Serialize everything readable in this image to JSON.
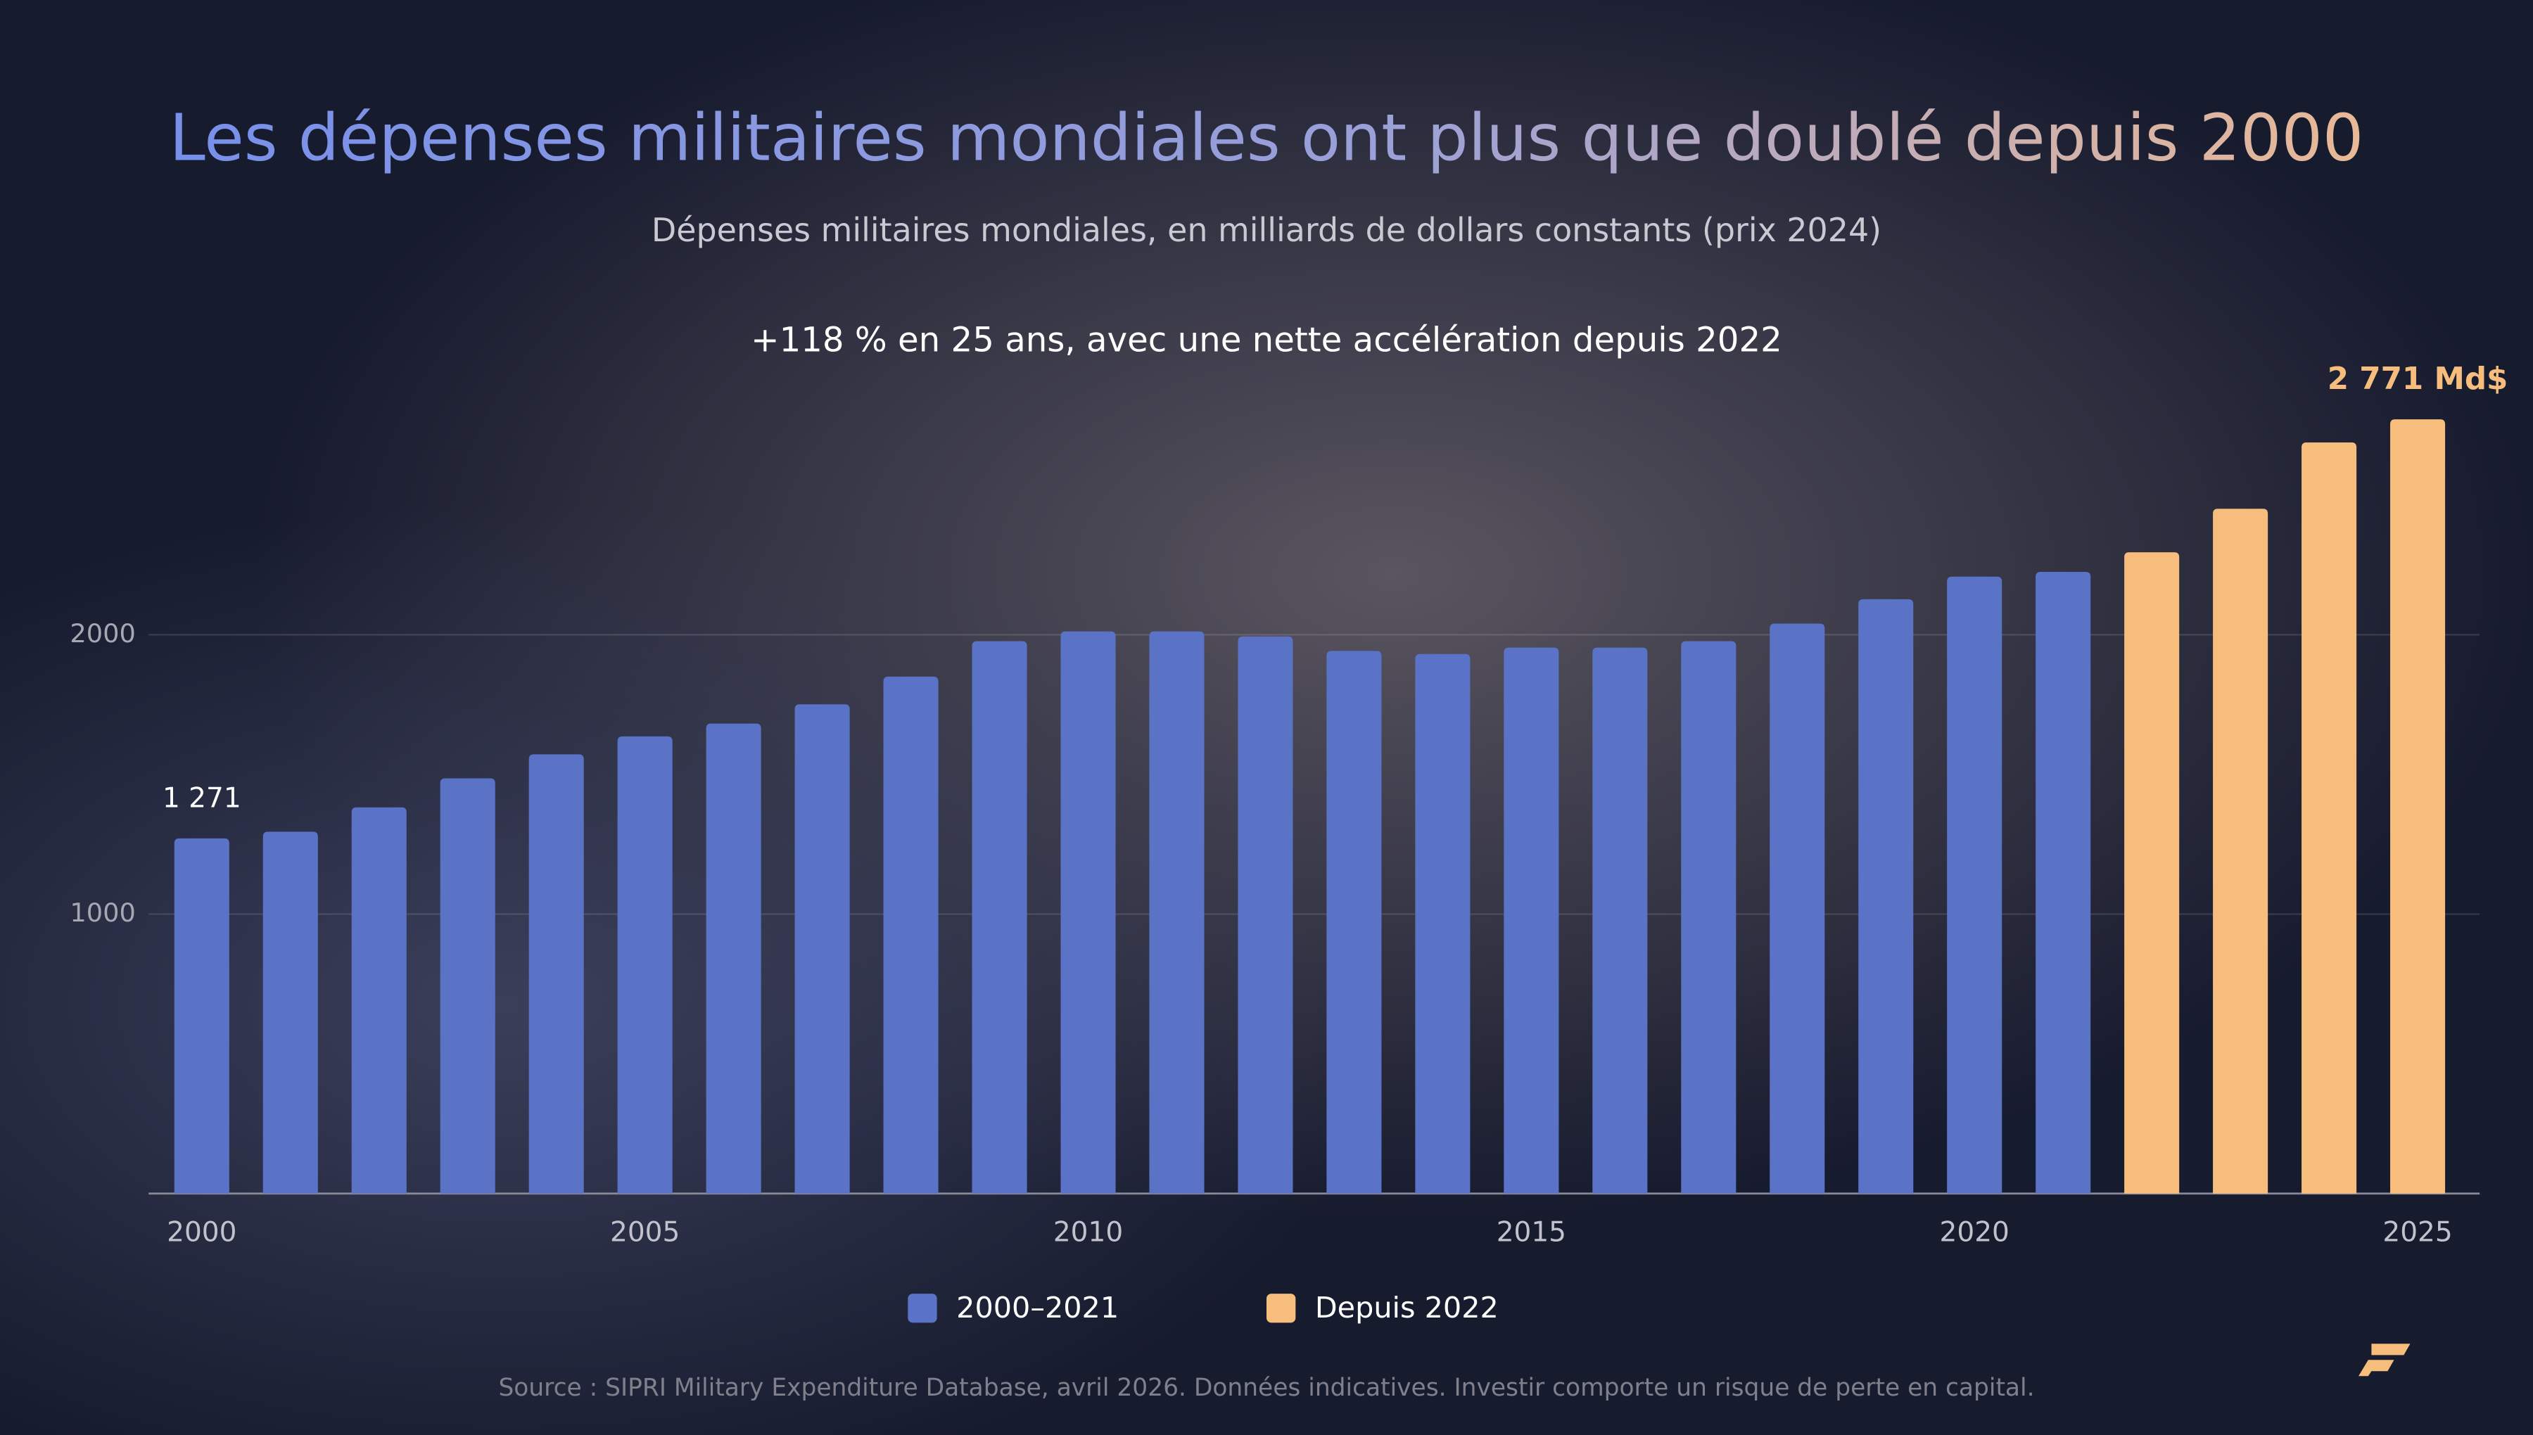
{
  "chart_data": {
    "type": "bar",
    "title": "Les dépenses militaires mondiales ont plus que doublé depuis 2000",
    "subtitle": "Dépenses militaires mondiales, en milliards de dollars constants (prix 2024)",
    "annotation": "+118 % en 25 ans, avec une nette accélération depuis 2022",
    "source": "Source : SIPRI Military Expenditure Database, avril 2026. Données indicatives. Investir comporte un risque de perte en capital.",
    "x": [
      2000,
      2001,
      2002,
      2003,
      2004,
      2005,
      2006,
      2007,
      2008,
      2009,
      2010,
      2011,
      2012,
      2013,
      2014,
      2015,
      2016,
      2017,
      2018,
      2019,
      2020,
      2021,
      2022,
      2023,
      2024,
      2025
    ],
    "series": [
      {
        "name": "2000–2021",
        "color": "#5b73c6",
        "values": [
          1271,
          1295,
          1382,
          1486,
          1572,
          1636,
          1682,
          1751,
          1850,
          1977,
          2012,
          2012,
          1994,
          1942,
          1931,
          1954,
          1954,
          1977,
          2040,
          2127,
          2208,
          2225,
          null,
          null,
          null,
          null
        ],
        "value_labels": [
          "1 271",
          null,
          null,
          null,
          null,
          null,
          null,
          null,
          null,
          null,
          null,
          null,
          null,
          null,
          null,
          null,
          null,
          null,
          null,
          null,
          null,
          null,
          null,
          null,
          null,
          null
        ]
      },
      {
        "name": "Depuis 2022",
        "color": "#f7bd7c",
        "values": [
          null,
          null,
          null,
          null,
          null,
          null,
          null,
          null,
          null,
          null,
          null,
          null,
          null,
          null,
          null,
          null,
          null,
          null,
          null,
          null,
          null,
          null,
          2295,
          2451,
          2688,
          2771
        ],
        "value_labels": [
          null,
          null,
          null,
          null,
          null,
          null,
          null,
          null,
          null,
          null,
          null,
          null,
          null,
          null,
          null,
          null,
          null,
          null,
          null,
          null,
          null,
          null,
          null,
          null,
          null,
          "2 771 Md$"
        ]
      }
    ],
    "xlim": [
      1999.4,
      2025.7
    ],
    "xticks": [
      2000,
      2005,
      2010,
      2015,
      2020,
      2025
    ],
    "ylim": [
      0,
      2800
    ],
    "yticks": [
      1000,
      2000
    ],
    "grid": true
  }
}
